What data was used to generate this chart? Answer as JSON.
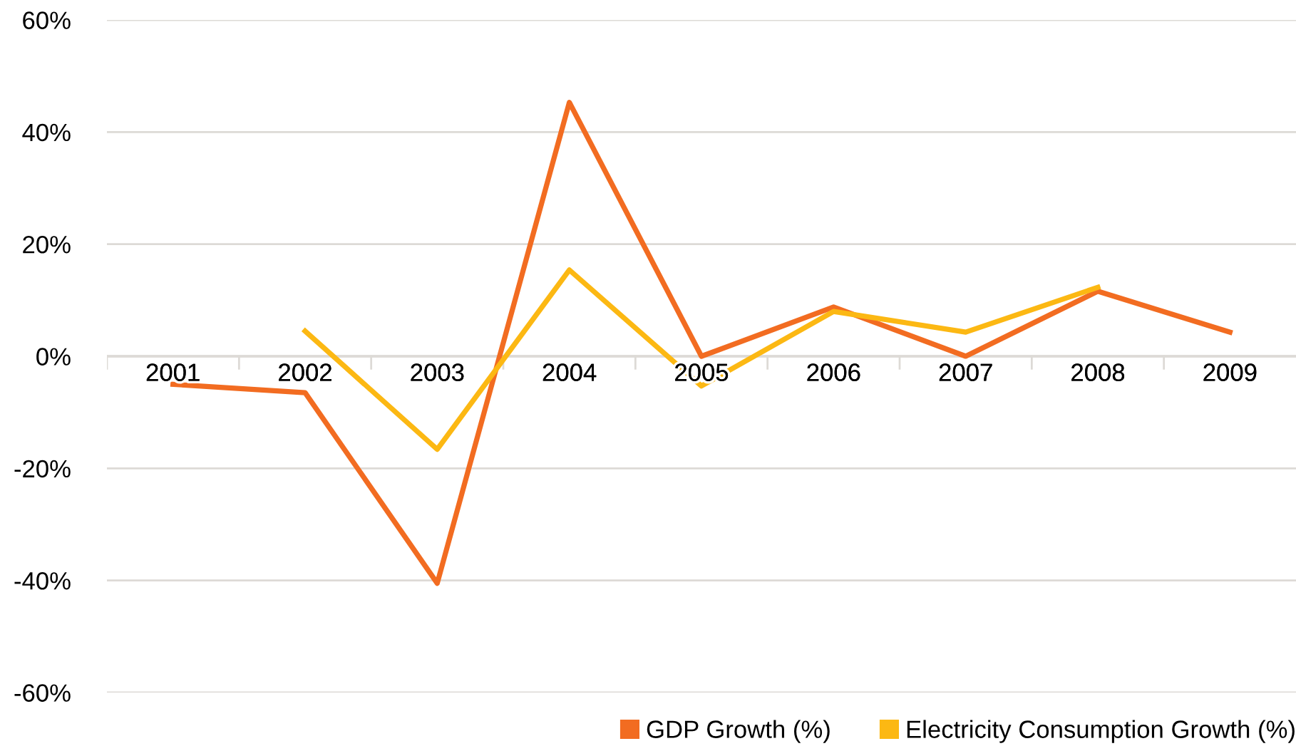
{
  "chart_data": {
    "type": "line",
    "categories": [
      "2001",
      "2002",
      "2003",
      "2004",
      "2005",
      "2006",
      "2007",
      "2008",
      "2009"
    ],
    "series": [
      {
        "name": "GDP Growth (%)",
        "color": "#f26c21",
        "values": [
          -5,
          -6.5,
          -40.5,
          45.3,
          0,
          8.8,
          0,
          11.6,
          4.3
        ]
      },
      {
        "name": "Electricity Consumption Growth (%)",
        "color": "#fcb813",
        "values": [
          null,
          4.5,
          -16.6,
          15.4,
          -5.3,
          8,
          4.3,
          12.3,
          null
        ]
      }
    ],
    "ylim": [
      -60,
      60
    ],
    "yticks": [
      {
        "value": -60,
        "label": "-60%"
      },
      {
        "value": -40,
        "label": "-40%"
      },
      {
        "value": -20,
        "label": "-20%"
      },
      {
        "value": 0,
        "label": "0%"
      },
      {
        "value": 20,
        "label": "20%"
      },
      {
        "value": 40,
        "label": "40%"
      },
      {
        "value": 60,
        "label": "60%"
      }
    ],
    "grid": "y",
    "legend": "bottom right",
    "marker": "none",
    "line_style": "solid"
  }
}
